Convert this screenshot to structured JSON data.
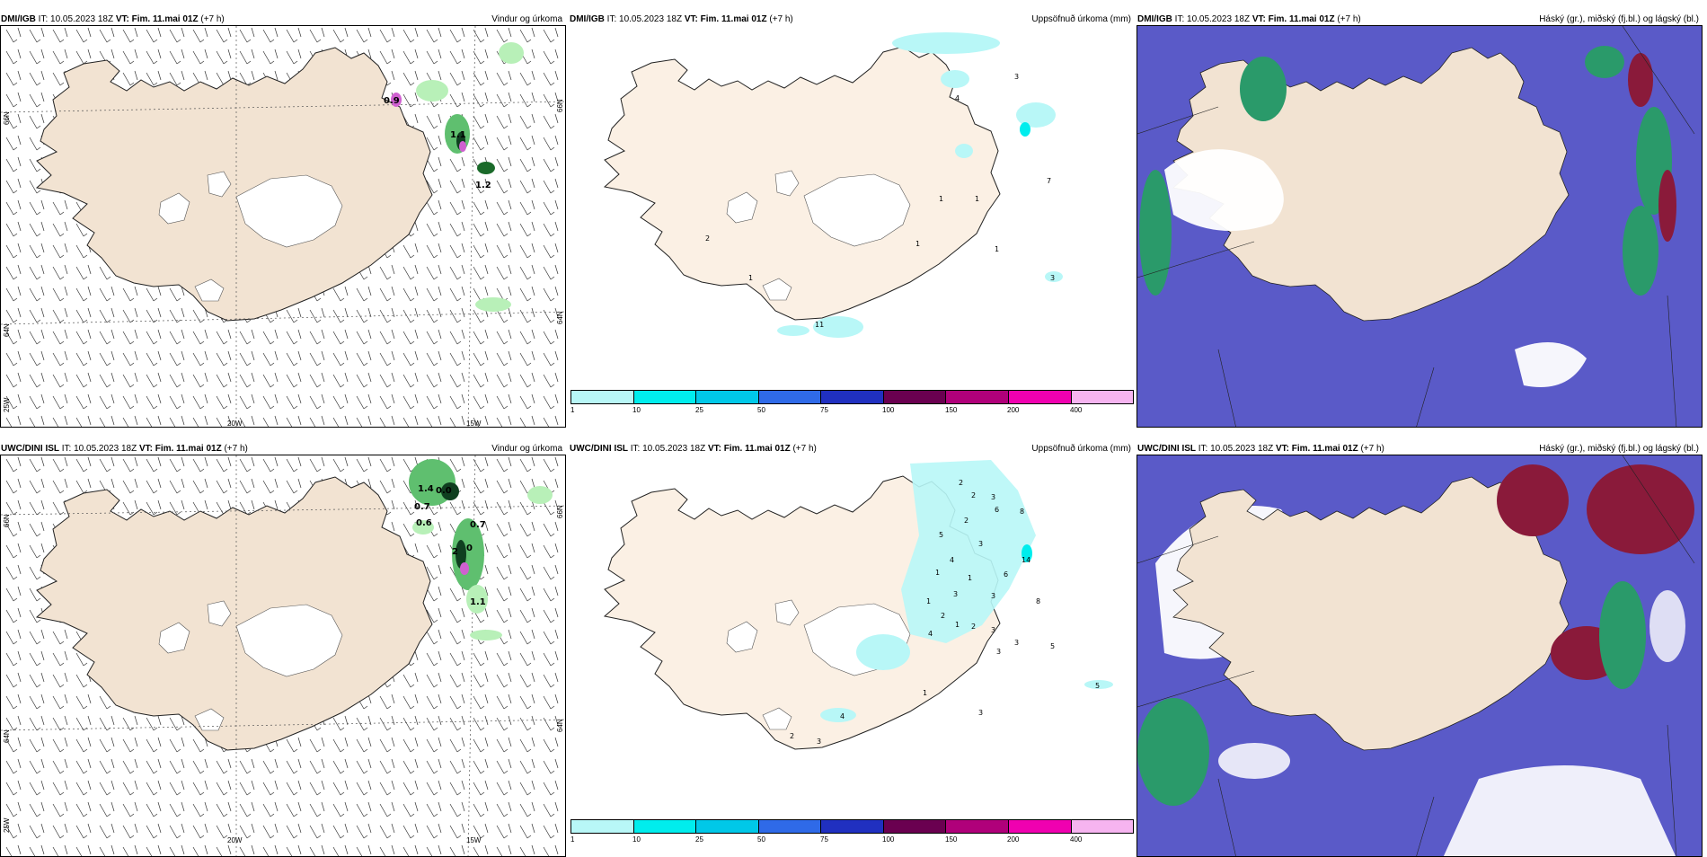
{
  "panels": [
    {
      "model": "DMI/IGB",
      "it_label": "IT: 10.05.2023 18Z",
      "vt_label": "VT: Fim. 11.mai 01Z",
      "lead": "(+7 h)",
      "product": "Vindur og úrkoma",
      "lon_labels": [
        "20W",
        "15W"
      ],
      "lat_labels": [
        "66N",
        "64N",
        "25W",
        "66N",
        "64N"
      ],
      "values": [
        "0.9",
        "1.1",
        "1.2"
      ]
    },
    {
      "model": "DMI/IGB",
      "it_label": "IT: 10.05.2023 18Z",
      "vt_label": "VT: Fim. 11.mai 01Z",
      "lead": "(+7 h)",
      "product": "Uppsöfnuð úrkoma (mm)",
      "values": [
        "4",
        "3",
        "7",
        "1",
        "1",
        "2",
        "1",
        "1",
        "1",
        "3",
        "11"
      ]
    },
    {
      "model": "DMI/IGB",
      "it_label": "IT: 10.05.2023 18Z",
      "vt_label": "VT: Fim. 11.mai 01Z",
      "lead": "(+7 h)",
      "product": "Háský (gr.), miðský (fj.bl.) og lágský (bl.)"
    },
    {
      "model": "UWC/DINI ISL",
      "it_label": "IT: 10.05.2023 18Z",
      "vt_label": "VT: Fim. 11.mai 01Z",
      "lead": "(+7 h)",
      "product": "Vindur og úrkoma",
      "lon_labels": [
        "20W",
        "15W"
      ],
      "lat_labels": [
        "66N",
        "64N",
        "25W",
        "66N",
        "64N"
      ],
      "values": [
        "1.4",
        "0.0",
        "0.7",
        "0.6",
        "0.7",
        "2",
        "0",
        "1.1"
      ]
    },
    {
      "model": "UWC/DINI ISL",
      "it_label": "IT: 10.05.2023 18Z",
      "vt_label": "VT: Fim. 11.mai 01Z",
      "lead": "(+7 h)",
      "product": "Uppsöfnuð úrkoma (mm)",
      "values": [
        "2",
        "2",
        "3",
        "5",
        "2",
        "3",
        "6",
        "8",
        "1",
        "4",
        "1",
        "3",
        "6",
        "14",
        "1",
        "2",
        "3",
        "8",
        "1",
        "2",
        "4",
        "3",
        "3",
        "3",
        "5",
        "1",
        "4",
        "2",
        "3",
        "3",
        "5"
      ]
    },
    {
      "model": "UWC/DINI ISL",
      "it_label": "IT: 10.05.2023 18Z",
      "vt_label": "VT: Fim. 11.mai 01Z",
      "lead": "(+7 h)",
      "product": "Háský (gr.), miðský (fj.bl.) og lágský (bl.)"
    }
  ],
  "colorbar": {
    "labels": [
      "1",
      "10",
      "25",
      "50",
      "75",
      "100",
      "150",
      "200",
      "400"
    ],
    "colors": [
      "#b8f7f7",
      "#00eded",
      "#00c8e8",
      "#2f6ae8",
      "#2030c0",
      "#6a0050",
      "#b0007a",
      "#f000b0",
      "#f6b4f0"
    ]
  },
  "colors": {
    "land": "#f2e3d2",
    "land_precip": "#fbf0e4",
    "sea_cloud": "#5a5ac8",
    "green_precip": "#b8f0b8",
    "high_cloud": "#2a9a6a",
    "mid_cloud": "#8a1a3a"
  }
}
